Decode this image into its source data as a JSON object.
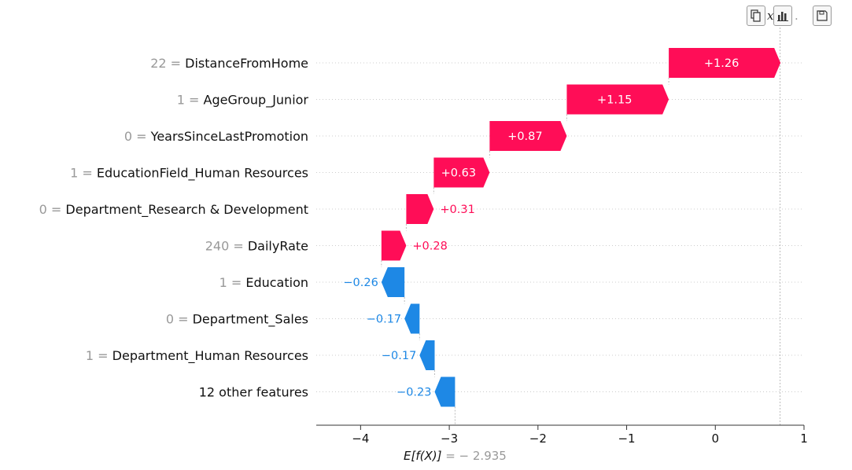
{
  "chart_data": {
    "type": "waterfall",
    "features": [
      {
        "value": "22",
        "name": "DistanceFromHome",
        "shap": 1.26,
        "label": "+1.26"
      },
      {
        "value": "1",
        "name": "AgeGroup_Junior",
        "shap": 1.15,
        "label": "+1.15"
      },
      {
        "value": "0",
        "name": "YearsSinceLastPromotion",
        "shap": 0.87,
        "label": "+0.87"
      },
      {
        "value": "1",
        "name": "EducationField_Human Resources",
        "shap": 0.63,
        "label": "+0.63"
      },
      {
        "value": "0",
        "name": "Department_Research & Development",
        "shap": 0.31,
        "label": "+0.31"
      },
      {
        "value": "240",
        "name": "DailyRate",
        "shap": 0.28,
        "label": "+0.28"
      },
      {
        "value": "1",
        "name": "Education",
        "shap": -0.26,
        "label": "−0.26"
      },
      {
        "value": "0",
        "name": "Department_Sales",
        "shap": -0.17,
        "label": "−0.17"
      },
      {
        "value": "1",
        "name": "Department_Human Resources",
        "shap": -0.17,
        "label": "−0.17"
      },
      {
        "value": "",
        "name": "12 other features",
        "shap": -0.23,
        "label": "−0.23"
      }
    ],
    "base_value": -2.935,
    "base_label_prefix": "E[f(X)]",
    "base_label_value": " = − 2.935",
    "fx_value": 0.73,
    "xlim": [
      -4.5,
      1.0
    ],
    "xticks": [
      -4,
      -3,
      -2,
      -1,
      0,
      1
    ],
    "xtick_labels": [
      "−4",
      "−3",
      "−2",
      "−1",
      "0",
      "1"
    ],
    "positive_color": "#ff0d57",
    "negative_color": "#1e88e5",
    "positive_text_color": "#ff0d57",
    "negative_text_color": "#1e88e5"
  },
  "toolbar": {
    "icons": [
      "copy-icon",
      "bar-chart-icon",
      "save-icon"
    ],
    "clipped_glyph_1": "x",
    "clipped_glyph_2": "."
  }
}
